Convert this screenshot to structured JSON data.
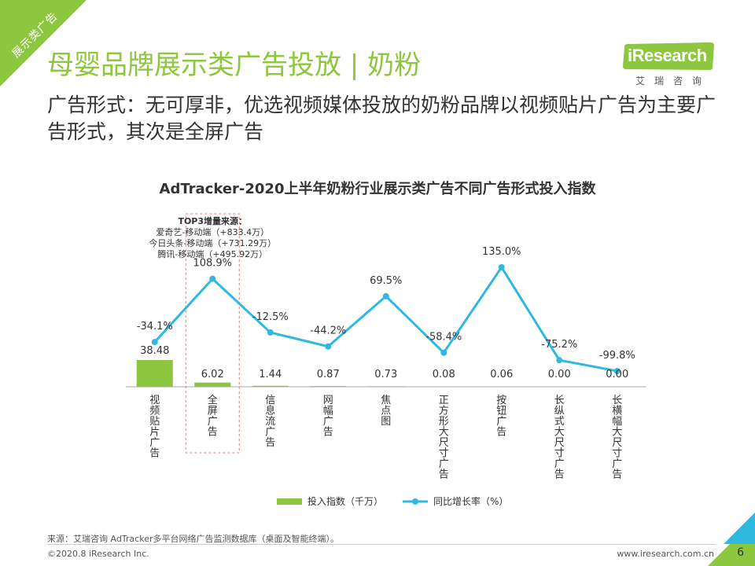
{
  "corner_tag": "展示类广告",
  "title": "母婴品牌展示类广告投放 | 奶粉",
  "subtitle": "广告形式：无可厚非，优选视频媒体投放的奶粉品牌以视频贴片广告为主要广告形式，其次是全屏广告",
  "logo": {
    "name": "iResearch",
    "sub": "艾瑞咨询"
  },
  "colors": {
    "bar": "#8dc63f",
    "line": "#2fb8e0",
    "title": "#8dc63f",
    "highlight_box": "#e57a7a"
  },
  "chart_data": {
    "type": "bar+line",
    "title": "AdTracker-2020上半年奶粉行业展示类广告不同广告形式投入指数",
    "categories": [
      "视频贴片广告",
      "全屏广告",
      "信息流广告",
      "网幅广告",
      "焦点图",
      "正方形大尺寸广告",
      "按钮广告",
      "长纵式大尺寸广告",
      "长横幅大尺寸广告"
    ],
    "bar_values": [
      38.48,
      6.02,
      1.44,
      0.87,
      0.73,
      0.08,
      0.06,
      0.0,
      0.0
    ],
    "bar_labels": [
      "38.48",
      "6.02",
      "1.44",
      "0.87",
      "0.73",
      "0.08",
      "0.06",
      "0.00",
      "0.00"
    ],
    "line_values": [
      -34.1,
      108.9,
      -12.5,
      -44.2,
      69.5,
      -58.4,
      135.0,
      -75.2,
      -99.8
    ],
    "line_labels": [
      "-34.1%",
      "108.9%",
      "-12.5%",
      "-44.2%",
      "69.5%",
      "-58.4%",
      "135.0%",
      "-75.2%",
      "-99.8%"
    ],
    "series": [
      {
        "name": "投入指数（千万）",
        "type": "bar"
      },
      {
        "name": "同比增长率（%）",
        "type": "line"
      }
    ],
    "annotation": {
      "title": "TOP3增量来源：",
      "lines": [
        "爱奇艺-移动端（+833.4万）",
        "今日头条-移动端（+731.29万）",
        "腾讯-移动端（+495.92万）"
      ],
      "highlight_index": 1
    }
  },
  "footer": {
    "source": "来源：艾瑞咨询 AdTracker多平台网络广告监测数据库（桌面及智能终端）。",
    "copyright": "©2020.8 iResearch Inc.",
    "url": "www.iresearch.com.cn",
    "page": "6"
  }
}
